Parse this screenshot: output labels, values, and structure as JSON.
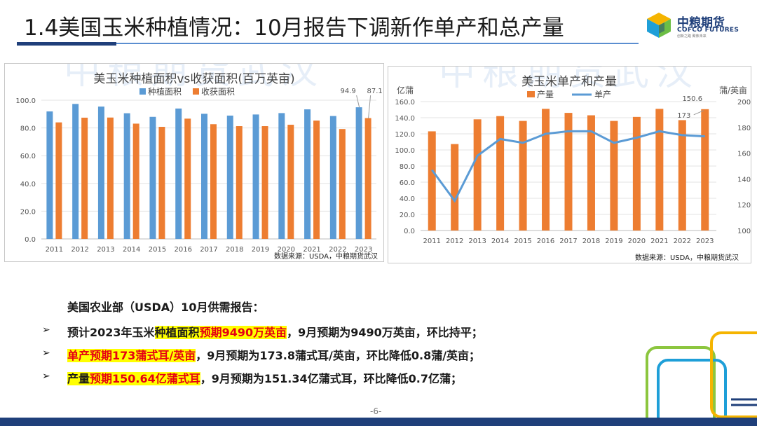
{
  "title": "1.4美国玉米种植情况：10月报告下调新作单产和总产量",
  "logo": {
    "cn": "中粮期货",
    "en": "COFCO FUTURES",
    "sub": "创新之路  聚焦未来"
  },
  "watermark": "中粮期货武汉",
  "chart_data": [
    {
      "type": "bar",
      "title": "美玉米种植面积vs收获面积(百万英亩)",
      "categories": [
        "2011",
        "2012",
        "2013",
        "2014",
        "2015",
        "2016",
        "2017",
        "2018",
        "2019",
        "2020",
        "2021",
        "2022",
        "2023"
      ],
      "series": [
        {
          "name": "种植面积",
          "color": "#5b9bd5",
          "values": [
            91.9,
            97.3,
            95.4,
            90.6,
            88.0,
            94.0,
            90.2,
            88.9,
            89.7,
            90.7,
            93.4,
            88.6,
            94.9
          ]
        },
        {
          "name": "收获面积",
          "color": "#ed7d31",
          "values": [
            84.0,
            87.4,
            87.5,
            83.1,
            80.8,
            86.7,
            82.7,
            81.3,
            81.3,
            82.3,
            85.3,
            79.2,
            87.1
          ]
        }
      ],
      "annotations": [
        "94.9",
        "87.1"
      ],
      "ylim": [
        0,
        100
      ],
      "yticks": [
        "0.0",
        "20.0",
        "40.0",
        "60.0",
        "80.0",
        "100.0"
      ],
      "legend_position": "top",
      "source": "数据来源：USDA，中粮期货武汉"
    },
    {
      "type": "bar+line",
      "title": "美玉米单产和产量",
      "categories": [
        "2011",
        "2012",
        "2013",
        "2014",
        "2015",
        "2016",
        "2017",
        "2018",
        "2019",
        "2020",
        "2021",
        "2022",
        "2023"
      ],
      "series": [
        {
          "name": "产量",
          "type": "bar",
          "color": "#ed7d31",
          "axis": "left",
          "values": [
            123.1,
            107.3,
            138.0,
            142.0,
            136.0,
            151.0,
            146.0,
            143.0,
            136.0,
            141.0,
            151.0,
            137.0,
            150.6
          ]
        },
        {
          "name": "单产",
          "type": "line",
          "color": "#5b9bd5",
          "axis": "right",
          "values": [
            147,
            123,
            158,
            171,
            168,
            175,
            177,
            177,
            168,
            172,
            177,
            174,
            173
          ]
        }
      ],
      "left_axis_label": "亿蒲",
      "right_axis_label": "蒲/英亩",
      "ylim_left": [
        0,
        160
      ],
      "yticks_left": [
        "0.0",
        "20.0",
        "40.0",
        "60.0",
        "80.0",
        "100.0",
        "120.0",
        "140.0",
        "160.0"
      ],
      "ylim_right": [
        100,
        200
      ],
      "yticks_right": [
        "100",
        "120",
        "140",
        "160",
        "180",
        "200"
      ],
      "annotations": [
        "150.6",
        "173"
      ],
      "legend_position": "top",
      "source": "数据来源：USDA，中粮期货武汉"
    }
  ],
  "report": {
    "heading": "美国农业部（USDA）10月供需报告：",
    "arrow": "➢",
    "line1": {
      "a": "预计2023年玉米",
      "b": "种植面积",
      "c": "预期9490万英亩",
      "d": "，9月预期为9490万英亩，环比持平；"
    },
    "line2": {
      "a": "单产",
      "b": "预期173蒲式耳/英亩",
      "c": "，9月预期为173.8蒲式耳/英亩，环比降低0.8蒲/英亩；"
    },
    "line3": {
      "a": "产量",
      "b": "预期150.64亿蒲式耳",
      "c": "，9月预期为151.34亿蒲式耳，环比降低0.7亿蒲；"
    }
  },
  "page_number": "-6-"
}
